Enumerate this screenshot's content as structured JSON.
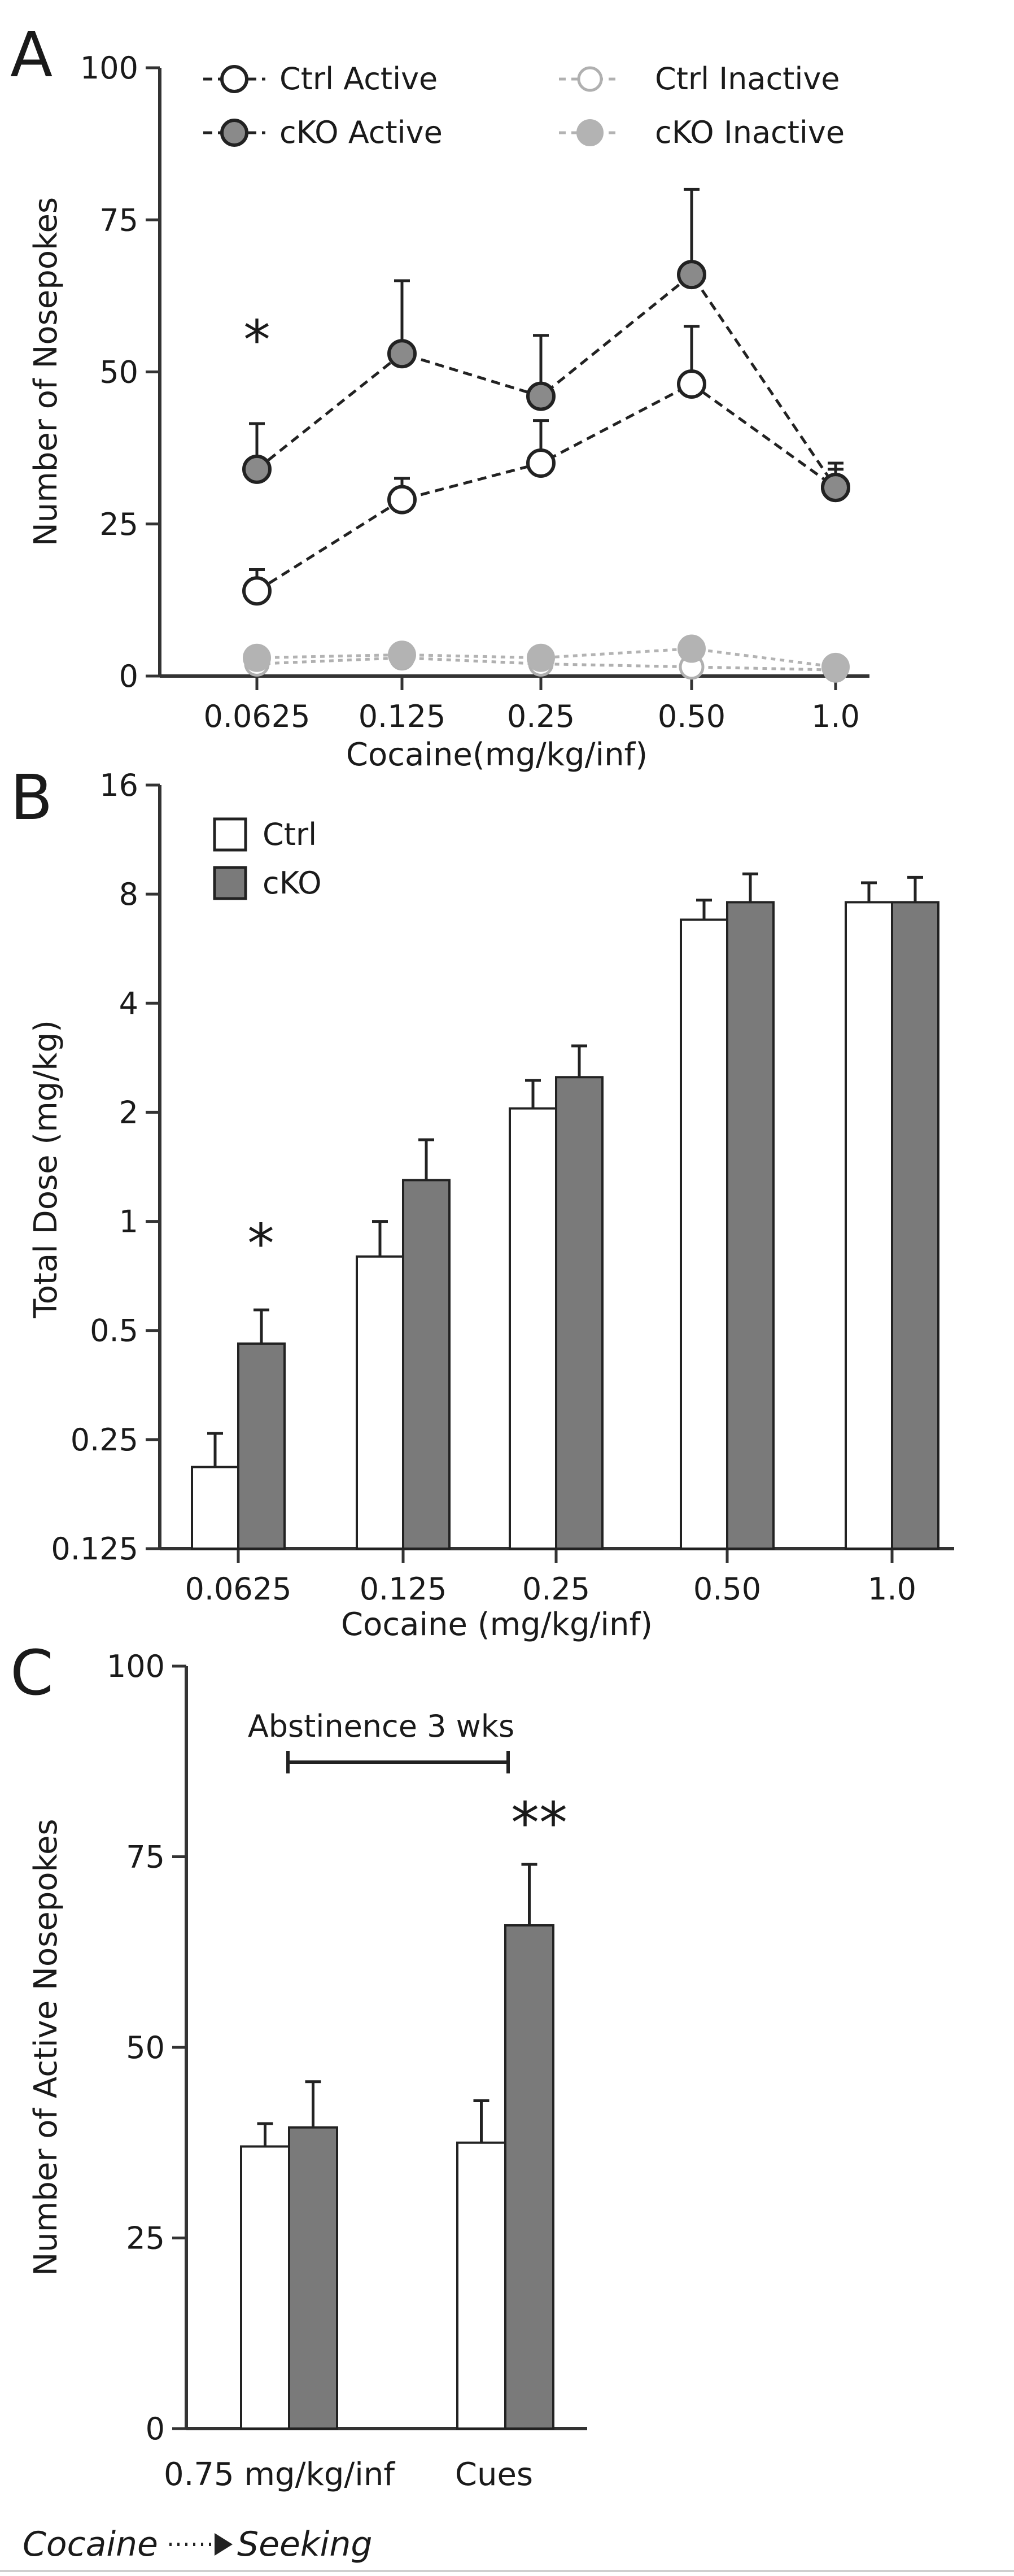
{
  "chart_data": [
    {
      "panel": "A",
      "type": "line",
      "title": "",
      "xlabel": "Cocaine(mg/kg/inf)",
      "ylabel": "Number of Nosepokes",
      "categories": [
        "0.0625",
        "0.125",
        "0.25",
        "0.50",
        "1.0"
      ],
      "ylim": [
        0,
        100
      ],
      "yticks": [
        "0",
        "25",
        "50",
        "75",
        "100"
      ],
      "grid": false,
      "legend": "top",
      "series": [
        {
          "name": "Ctrl Active",
          "values": [
            14,
            29,
            35,
            48,
            31
          ],
          "error": [
            3.5,
            3.5,
            7,
            9.5,
            3
          ]
        },
        {
          "name": "cKO Active",
          "values": [
            34,
            53,
            46,
            66,
            31
          ],
          "error": [
            7.5,
            12,
            10,
            14,
            4
          ]
        },
        {
          "name": "Ctrl Inactive",
          "values": [
            2,
            3,
            2,
            1.5,
            1
          ],
          "error": [
            0,
            0,
            0,
            0,
            0
          ]
        },
        {
          "name": "cKO Inactive",
          "values": [
            3,
            3.5,
            3,
            4.5,
            1.5
          ],
          "error": [
            0,
            0,
            0,
            0,
            0
          ]
        }
      ],
      "annotations": [
        {
          "text": "*",
          "category": "0.0625"
        }
      ]
    },
    {
      "panel": "B",
      "type": "bar",
      "title": "",
      "xlabel": "Cocaine (mg/kg/inf)",
      "ylabel": "Total Dose (mg/kg)",
      "yscale": "log2",
      "categories": [
        "0.0625",
        "0.125",
        "0.25",
        "0.50",
        "1.0"
      ],
      "ylim": [
        0.125,
        16
      ],
      "yticks": [
        "0.125",
        "0.25",
        "0.5",
        "1",
        "2",
        "4",
        "8",
        "16"
      ],
      "grid": false,
      "legend": "top-left",
      "series": [
        {
          "name": "Ctrl",
          "values": [
            0.21,
            0.8,
            2.05,
            6.8,
            7.6
          ],
          "error_upper": [
            0.26,
            1.0,
            2.45,
            7.7,
            8.6
          ]
        },
        {
          "name": "cKO",
          "values": [
            0.46,
            1.3,
            2.5,
            7.6,
            7.6
          ],
          "error_upper": [
            0.57,
            1.68,
            3.05,
            9.1,
            8.9
          ]
        }
      ],
      "annotations": [
        {
          "text": "*",
          "category": "0.0625"
        }
      ]
    },
    {
      "panel": "C",
      "type": "bar",
      "title": "",
      "xlabel": "",
      "ylabel": "Number of Active Nosepokes",
      "categories": [
        "0.75  mg/kg/inf",
        "Cues"
      ],
      "ylim": [
        0,
        100
      ],
      "yticks": [
        "0",
        "25",
        "50",
        "75",
        "100"
      ],
      "grid": false,
      "series": [
        {
          "name": "Ctrl",
          "values": [
            37,
            37.5
          ],
          "error": [
            3,
            5.5
          ]
        },
        {
          "name": "cKO",
          "values": [
            39.5,
            66
          ],
          "error": [
            6,
            8
          ]
        }
      ],
      "annotations": [
        {
          "text": "**",
          "category": "Cues"
        }
      ],
      "bracket_label": "Abstinence 3 wks",
      "footer": {
        "left": "Cocaine",
        "right": "Seeking"
      }
    }
  ],
  "colors": {
    "axis": "#333333",
    "ctrl_fill": "#ffffff",
    "cko_fill": "#7a7a7a",
    "ctrl_active_marker_fill": "#ffffff",
    "cko_active_marker_fill": "#8a8a8a",
    "inactive_ctrl_marker_stroke": "#b0b0b0",
    "inactive_cko_marker_fill": "#b3b3b3",
    "text": "#1a1a1a"
  }
}
